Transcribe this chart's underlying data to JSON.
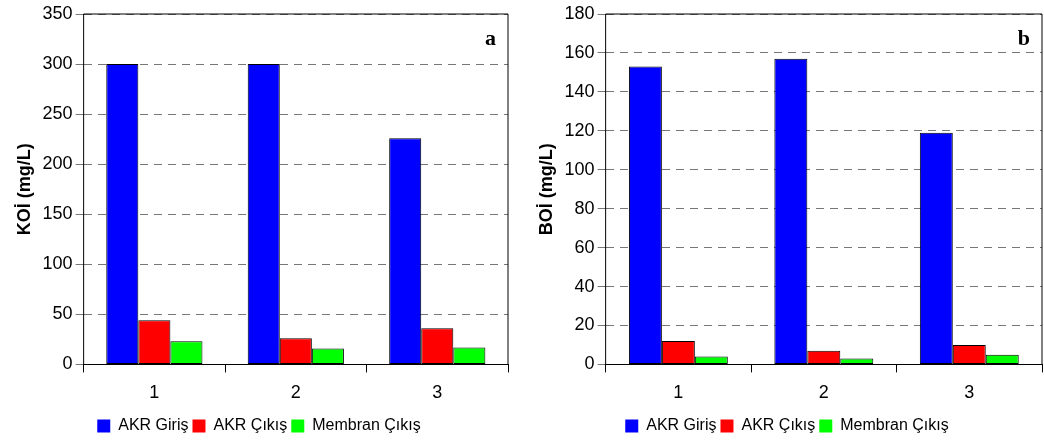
{
  "chart_data": [
    {
      "type": "bar",
      "categories": [
        "1",
        "2",
        "3"
      ],
      "ylabel": "KOİ (mg/L)",
      "ylim": [
        0,
        350
      ],
      "yticks": [
        0,
        50,
        100,
        150,
        200,
        250,
        300,
        350
      ],
      "grid": "y",
      "legend": "bottom",
      "annotations": [
        "a"
      ],
      "series": [
        {
          "name": "AKR Giriş",
          "color": "#0000ff",
          "values": [
            300,
            300,
            226
          ]
        },
        {
          "name": "AKR Çıkış",
          "color": "#ff0000",
          "values": [
            44,
            26,
            36
          ]
        },
        {
          "name": "Membran Çıkış",
          "color": "#00ff00",
          "values": [
            23,
            16,
            17
          ]
        }
      ]
    },
    {
      "type": "bar",
      "categories": [
        "1",
        "2",
        "3"
      ],
      "ylabel": "BOİ (mg/L)",
      "ylim": [
        0,
        180
      ],
      "yticks": [
        0,
        20,
        40,
        60,
        80,
        100,
        120,
        140,
        160,
        180
      ],
      "grid": "y",
      "legend": "bottom",
      "annotations": [
        "b"
      ],
      "series": [
        {
          "name": "AKR Giriş",
          "color": "#0000ff",
          "values": [
            153,
            157,
            119
          ]
        },
        {
          "name": "AKR Çıkış",
          "color": "#ff0000",
          "values": [
            12,
            7,
            10
          ]
        },
        {
          "name": "Membran Çıkış",
          "color": "#00ff00",
          "values": [
            4,
            3,
            5
          ]
        }
      ]
    }
  ]
}
